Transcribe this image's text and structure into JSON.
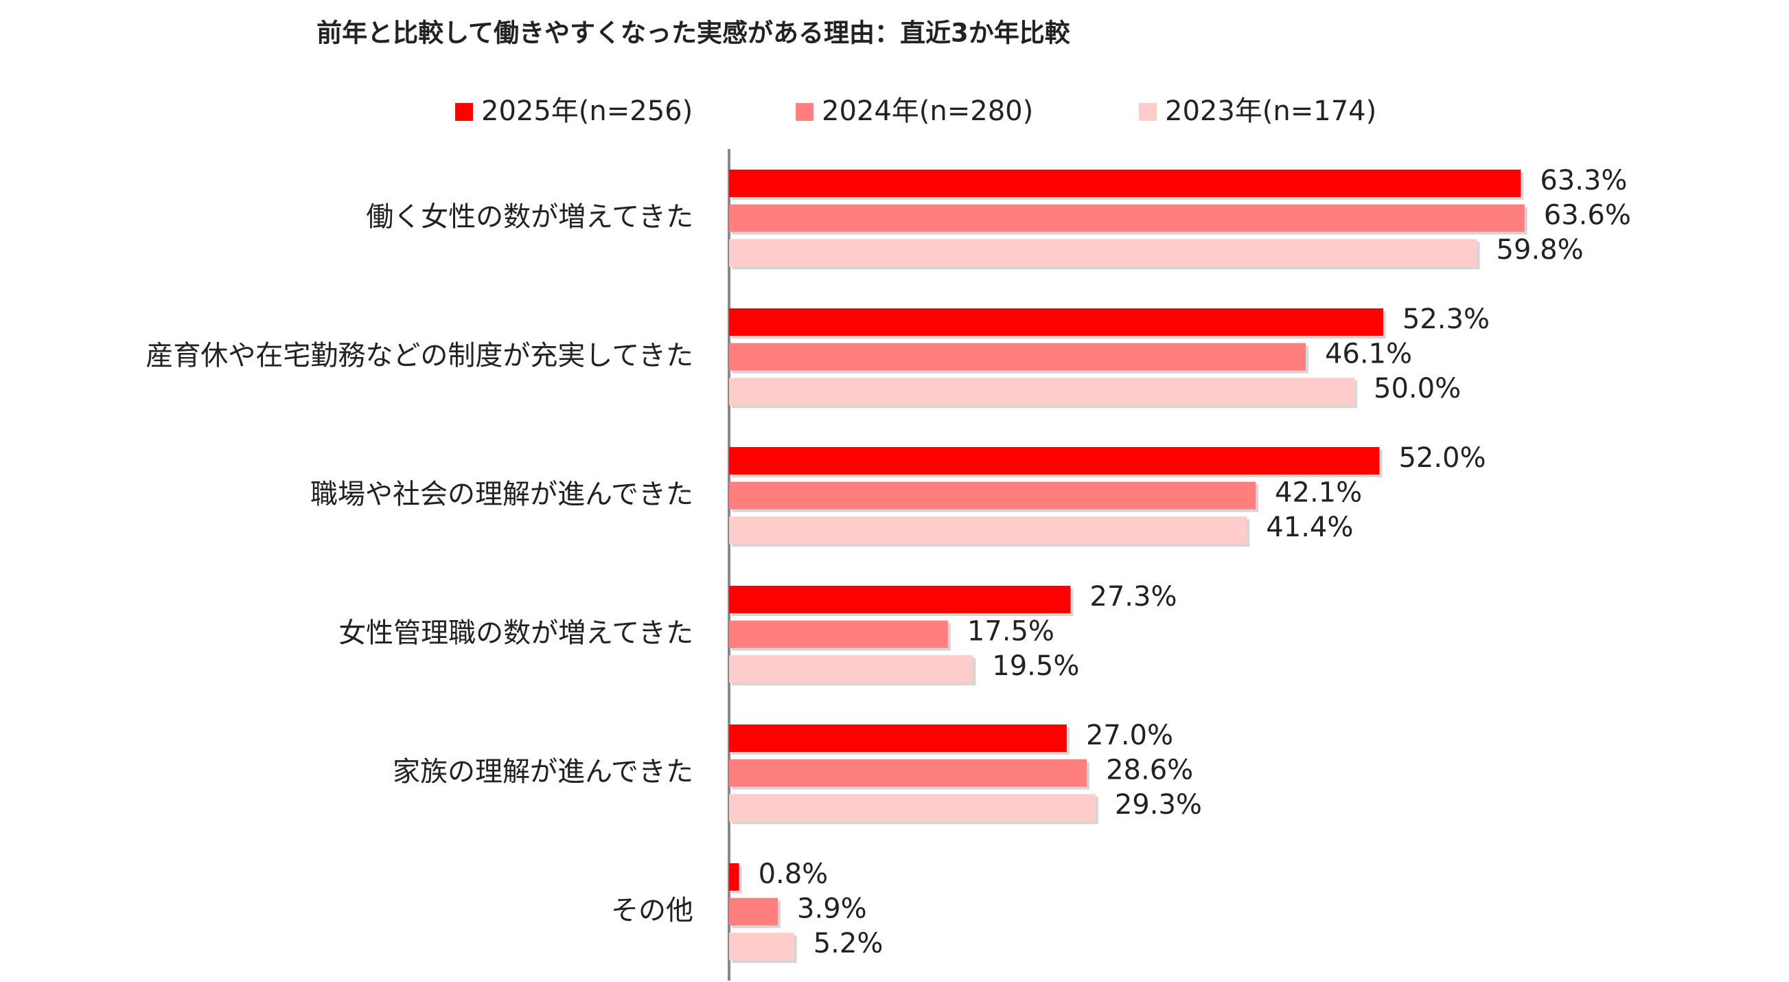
{
  "chart_data": {
    "type": "bar",
    "orientation": "horizontal",
    "title": "前年と比較して働きやすくなった実感がある理由：直近3か年比較",
    "categories": [
      "働く女性の数が増えてきた",
      "産育休や在宅勤務などの制度が充実してきた",
      "職場や社会の理解が進んできた",
      "女性管理職の数が増えてきた",
      "家族の理解が進んできた",
      "その他"
    ],
    "series": [
      {
        "name": "2025年(n=256)",
        "color": "#ff0000",
        "values": [
          63.3,
          52.3,
          52.0,
          27.3,
          27.0,
          0.8
        ],
        "value_labels": [
          "63.3%",
          "52.3%",
          "52.0%",
          "27.3%",
          "27.0%",
          "0.8%"
        ]
      },
      {
        "name": "2024年(n=280)",
        "color": "#ff7f7f",
        "values": [
          63.6,
          46.1,
          42.1,
          17.5,
          28.6,
          3.9
        ],
        "value_labels": [
          "63.6%",
          "46.1%",
          "42.1%",
          "17.5%",
          "28.6%",
          "3.9%"
        ]
      },
      {
        "name": "2023年(n=174)",
        "color": "#ffcccc",
        "values": [
          59.8,
          50.0,
          41.4,
          19.5,
          29.3,
          5.2
        ],
        "value_labels": [
          "59.8%",
          "50.0%",
          "41.4%",
          "19.5%",
          "29.3%",
          "5.2%"
        ]
      }
    ],
    "legend": "top"
  }
}
